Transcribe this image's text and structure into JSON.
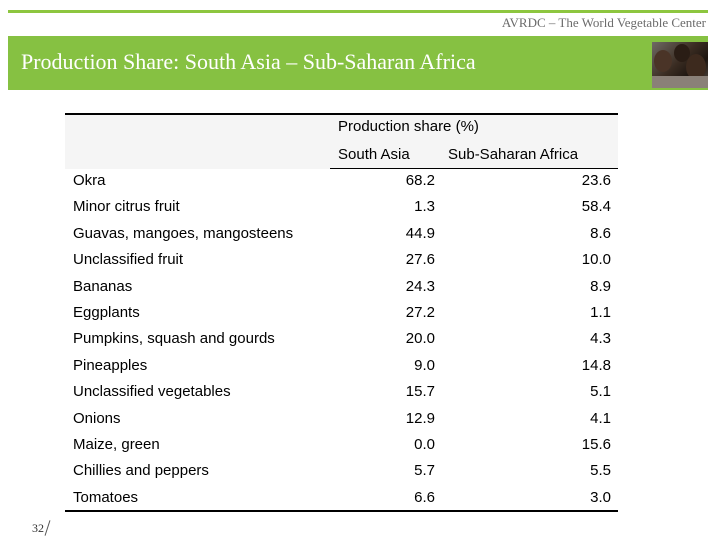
{
  "header": {
    "org_name": "AVRDC – The World Vegetable Center",
    "title": "Production Share: South Asia – Sub-Saharan Africa"
  },
  "table": {
    "group_header": "Production share (%)",
    "columns": [
      "South Asia",
      "Sub-Saharan Africa"
    ],
    "rows": [
      {
        "label": "Okra",
        "south_asia": "68.2",
        "ssa": "23.6"
      },
      {
        "label": "Minor citrus fruit",
        "south_asia": "1.3",
        "ssa": "58.4"
      },
      {
        "label": "Guavas, mangoes, mangosteens",
        "south_asia": "44.9",
        "ssa": "8.6"
      },
      {
        "label": "Unclassified fruit",
        "south_asia": "27.6",
        "ssa": "10.0"
      },
      {
        "label": "Bananas",
        "south_asia": "24.3",
        "ssa": "8.9"
      },
      {
        "label": "Eggplants",
        "south_asia": "27.2",
        "ssa": "1.1"
      },
      {
        "label": "Pumpkins, squash and gourds",
        "south_asia": "20.0",
        "ssa": "4.3"
      },
      {
        "label": "Pineapples",
        "south_asia": "9.0",
        "ssa": "14.8"
      },
      {
        "label": "Unclassified vegetables",
        "south_asia": "15.7",
        "ssa": "5.1"
      },
      {
        "label": "Onions",
        "south_asia": "12.9",
        "ssa": "4.1"
      },
      {
        "label": "Maize, green",
        "south_asia": "0.0",
        "ssa": "15.6"
      },
      {
        "label": "Chillies and peppers",
        "south_asia": "5.7",
        "ssa": "5.5"
      },
      {
        "label": "Tomatoes",
        "south_asia": "6.6",
        "ssa": "3.0"
      }
    ]
  },
  "footer": {
    "page_number": "32"
  },
  "colors": {
    "accent": "#86c142",
    "rule": "#8dc63f"
  },
  "icons": {
    "photo": "children-photo"
  }
}
